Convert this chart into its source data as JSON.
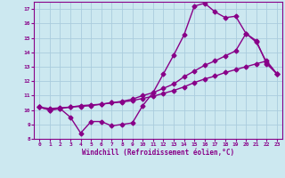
{
  "xlabel": "Windchill (Refroidissement éolien,°C)",
  "bg_color": "#cce8f0",
  "line_color": "#880088",
  "grid_color": "#aaccdd",
  "xlim": [
    -0.5,
    23.5
  ],
  "ylim": [
    8,
    17.5
  ],
  "yticks": [
    8,
    9,
    10,
    11,
    12,
    13,
    14,
    15,
    16,
    17
  ],
  "xticks": [
    0,
    1,
    2,
    3,
    4,
    5,
    6,
    7,
    8,
    9,
    10,
    11,
    12,
    13,
    14,
    15,
    16,
    17,
    18,
    19,
    20,
    21,
    22,
    23
  ],
  "series1_x": [
    0,
    1,
    2,
    3,
    4,
    5,
    6,
    7,
    8,
    9,
    10,
    11,
    12,
    13,
    14,
    15,
    16,
    17,
    18,
    19,
    20,
    21,
    22,
    23
  ],
  "series1_y": [
    10.2,
    10.0,
    10.1,
    9.5,
    8.4,
    9.2,
    9.2,
    8.9,
    9.0,
    9.1,
    10.3,
    11.2,
    12.5,
    13.8,
    15.2,
    17.2,
    17.4,
    16.8,
    16.4,
    16.5,
    15.3,
    14.7,
    13.3,
    12.5
  ],
  "series2_x": [
    0,
    1,
    2,
    3,
    4,
    5,
    6,
    7,
    8,
    9,
    10,
    11,
    12,
    13,
    14,
    15,
    16,
    17,
    18,
    19,
    20,
    21,
    22,
    23
  ],
  "series2_y": [
    10.2,
    10.0,
    10.1,
    10.2,
    10.3,
    10.35,
    10.4,
    10.5,
    10.6,
    10.75,
    11.0,
    11.2,
    11.5,
    11.8,
    12.3,
    12.7,
    13.1,
    13.4,
    13.75,
    14.1,
    15.3,
    14.8,
    13.2,
    12.5
  ],
  "series3_x": [
    0,
    1,
    2,
    3,
    4,
    5,
    6,
    7,
    8,
    9,
    10,
    11,
    12,
    13,
    14,
    15,
    16,
    17,
    18,
    19,
    20,
    21,
    22,
    23
  ],
  "series3_y": [
    10.2,
    10.1,
    10.15,
    10.2,
    10.25,
    10.3,
    10.4,
    10.5,
    10.55,
    10.65,
    10.8,
    10.95,
    11.15,
    11.35,
    11.6,
    11.9,
    12.15,
    12.35,
    12.6,
    12.8,
    13.0,
    13.2,
    13.4,
    12.5
  ],
  "marker": "D",
  "markersize": 2.5,
  "linewidth": 1.0
}
